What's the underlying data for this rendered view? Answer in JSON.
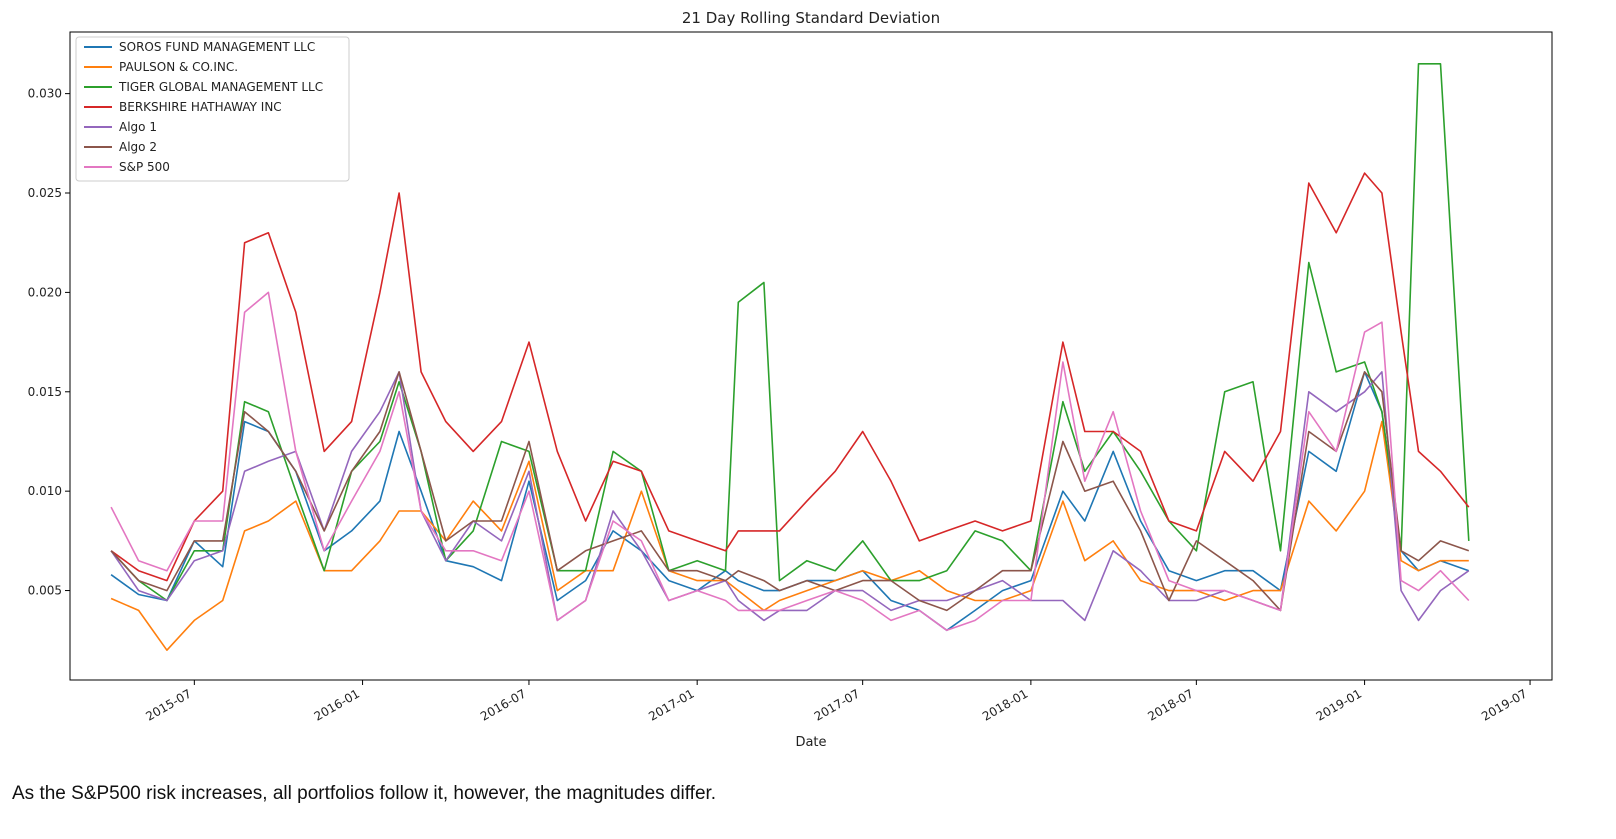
{
  "chart_data": {
    "type": "line",
    "title": "21 Day Rolling Standard Deviation",
    "xlabel": "Date",
    "ylabel": "",
    "xlim": [
      "2015-02-15",
      "2019-07-25"
    ],
    "ylim": [
      0.0005,
      0.0331
    ],
    "legend_position": "top-left",
    "grid": false,
    "x_ticks": [
      "2015-07-01",
      "2016-01-01",
      "2016-07-01",
      "2017-01-01",
      "2017-07-01",
      "2018-01-01",
      "2018-07-01",
      "2019-01-01",
      "2019-07-01"
    ],
    "x_tick_labels": [
      "2015-07",
      "2016-01",
      "2016-07",
      "2017-01",
      "2017-07",
      "2018-01",
      "2018-07",
      "2019-01",
      "2019-07"
    ],
    "y_ticks": [
      0.005,
      0.01,
      0.015,
      0.02,
      0.025,
      0.03
    ],
    "y_tick_labels": [
      "0.005",
      "0.010",
      "0.015",
      "0.020",
      "0.025",
      "0.030"
    ],
    "x": [
      "2015-04-01",
      "2015-05-01",
      "2015-06-01",
      "2015-07-01",
      "2015-08-01",
      "2015-08-25",
      "2015-09-20",
      "2015-10-20",
      "2015-11-20",
      "2015-12-20",
      "2016-01-20",
      "2016-02-10",
      "2016-03-05",
      "2016-04-01",
      "2016-05-01",
      "2016-06-01",
      "2016-07-01",
      "2016-08-01",
      "2016-09-01",
      "2016-10-01",
      "2016-11-01",
      "2016-12-01",
      "2017-01-01",
      "2017-02-01",
      "2017-02-15",
      "2017-03-15",
      "2017-04-01",
      "2017-05-01",
      "2017-06-01",
      "2017-07-01",
      "2017-08-01",
      "2017-09-01",
      "2017-10-01",
      "2017-11-01",
      "2017-12-01",
      "2018-01-01",
      "2018-02-05",
      "2018-03-01",
      "2018-04-01",
      "2018-05-01",
      "2018-06-01",
      "2018-07-01",
      "2018-08-01",
      "2018-09-01",
      "2018-10-01",
      "2018-11-01",
      "2018-12-01",
      "2019-01-01",
      "2019-01-20",
      "2019-02-10",
      "2019-03-01",
      "2019-03-25",
      "2019-04-25"
    ],
    "series": [
      {
        "name": "SOROS FUND MANAGEMENT LLC",
        "color": "#1f77b4",
        "values": [
          0.0058,
          0.0048,
          0.0045,
          0.0075,
          0.0062,
          0.0135,
          0.013,
          0.011,
          0.007,
          0.008,
          0.0095,
          0.013,
          0.01,
          0.0065,
          0.0062,
          0.0055,
          0.0105,
          0.0045,
          0.0055,
          0.008,
          0.007,
          0.0055,
          0.005,
          0.006,
          0.0055,
          0.005,
          0.005,
          0.0055,
          0.0055,
          0.006,
          0.0045,
          0.004,
          0.003,
          0.004,
          0.005,
          0.0055,
          0.01,
          0.0085,
          0.012,
          0.0085,
          0.006,
          0.0055,
          0.006,
          0.006,
          0.005,
          0.012,
          0.011,
          0.016,
          0.014,
          0.007,
          0.006,
          0.0065,
          0.006
        ]
      },
      {
        "name": "PAULSON & CO.INC.",
        "color": "#ff7f0e",
        "values": [
          0.0046,
          0.004,
          0.002,
          0.0035,
          0.0045,
          0.008,
          0.0085,
          0.0095,
          0.006,
          0.006,
          0.0075,
          0.009,
          0.009,
          0.0075,
          0.0095,
          0.008,
          0.0115,
          0.005,
          0.006,
          0.006,
          0.01,
          0.006,
          0.0055,
          0.0055,
          0.005,
          0.004,
          0.0045,
          0.005,
          0.0055,
          0.006,
          0.0055,
          0.006,
          0.005,
          0.0045,
          0.0045,
          0.005,
          0.0095,
          0.0065,
          0.0075,
          0.0055,
          0.005,
          0.005,
          0.0045,
          0.005,
          0.005,
          0.0095,
          0.008,
          0.01,
          0.0135,
          0.0065,
          0.006,
          0.0065,
          0.0065
        ]
      },
      {
        "name": "TIGER GLOBAL MANAGEMENT LLC",
        "color": "#2ca02c",
        "values": [
          0.007,
          0.0055,
          0.0045,
          0.007,
          0.007,
          0.0145,
          0.014,
          0.01,
          0.006,
          0.011,
          0.0125,
          0.0155,
          0.012,
          0.0065,
          0.008,
          0.0125,
          0.012,
          0.006,
          0.006,
          0.012,
          0.011,
          0.006,
          0.0065,
          0.006,
          0.0195,
          0.0205,
          0.0055,
          0.0065,
          0.006,
          0.0075,
          0.0055,
          0.0055,
          0.006,
          0.008,
          0.0075,
          0.006,
          0.0145,
          0.011,
          0.013,
          0.011,
          0.0085,
          0.007,
          0.015,
          0.0155,
          0.007,
          0.0215,
          0.016,
          0.0165,
          0.014,
          0.007,
          0.0315,
          0.0315,
          0.0075
        ]
      },
      {
        "name": "BERKSHIRE HATHAWAY INC",
        "color": "#d62728",
        "values": [
          0.007,
          0.006,
          0.0055,
          0.0085,
          0.01,
          0.0225,
          0.023,
          0.019,
          0.012,
          0.0135,
          0.02,
          0.025,
          0.016,
          0.0135,
          0.012,
          0.0135,
          0.0175,
          0.012,
          0.0085,
          0.0115,
          0.011,
          0.008,
          0.0075,
          0.007,
          0.008,
          0.008,
          0.008,
          0.0095,
          0.011,
          0.013,
          0.0105,
          0.0075,
          0.008,
          0.0085,
          0.008,
          0.0085,
          0.0175,
          0.013,
          0.013,
          0.012,
          0.0085,
          0.008,
          0.012,
          0.0105,
          0.013,
          0.0255,
          0.023,
          0.026,
          0.025,
          0.018,
          0.012,
          0.011,
          0.0092
        ]
      },
      {
        "name": "Algo 1",
        "color": "#9467bd",
        "values": [
          0.007,
          0.005,
          0.0045,
          0.0065,
          0.007,
          0.011,
          0.0115,
          0.012,
          0.008,
          0.012,
          0.014,
          0.016,
          0.009,
          0.0065,
          0.0085,
          0.0075,
          0.011,
          0.0035,
          0.0045,
          0.009,
          0.007,
          0.0045,
          0.005,
          0.0055,
          0.0045,
          0.0035,
          0.004,
          0.004,
          0.005,
          0.005,
          0.004,
          0.0045,
          0.0045,
          0.005,
          0.0055,
          0.0045,
          0.0045,
          0.0035,
          0.007,
          0.006,
          0.0045,
          0.0045,
          0.005,
          0.0045,
          0.004,
          0.015,
          0.014,
          0.015,
          0.016,
          0.005,
          0.0035,
          0.005,
          0.006
        ]
      },
      {
        "name": "Algo 2",
        "color": "#8c564b",
        "values": [
          0.007,
          0.0055,
          0.005,
          0.0075,
          0.0075,
          0.014,
          0.013,
          0.011,
          0.008,
          0.011,
          0.013,
          0.016,
          0.012,
          0.0075,
          0.0085,
          0.0085,
          0.0125,
          0.006,
          0.007,
          0.0075,
          0.008,
          0.006,
          0.006,
          0.0055,
          0.006,
          0.0055,
          0.005,
          0.0055,
          0.005,
          0.0055,
          0.0055,
          0.0045,
          0.004,
          0.005,
          0.006,
          0.006,
          0.0125,
          0.01,
          0.0105,
          0.008,
          0.0045,
          0.0075,
          0.0065,
          0.0055,
          0.004,
          0.013,
          0.012,
          0.016,
          0.015,
          0.007,
          0.0065,
          0.0075,
          0.007
        ]
      },
      {
        "name": "S&P 500",
        "color": "#e377c2",
        "values": [
          0.0092,
          0.0065,
          0.006,
          0.0085,
          0.0085,
          0.019,
          0.02,
          0.012,
          0.007,
          0.0095,
          0.012,
          0.015,
          0.009,
          0.007,
          0.007,
          0.0065,
          0.01,
          0.0035,
          0.0045,
          0.0085,
          0.0075,
          0.0045,
          0.005,
          0.0045,
          0.004,
          0.004,
          0.004,
          0.0045,
          0.005,
          0.0045,
          0.0035,
          0.004,
          0.003,
          0.0035,
          0.0045,
          0.0045,
          0.0165,
          0.0105,
          0.014,
          0.009,
          0.0055,
          0.005,
          0.005,
          0.0045,
          0.004,
          0.014,
          0.012,
          0.018,
          0.0185,
          0.0055,
          0.005,
          0.006,
          0.0045
        ]
      }
    ]
  },
  "caption": "As the S&P500 risk increases, all portfolios follow it, however, the magnitudes differ."
}
